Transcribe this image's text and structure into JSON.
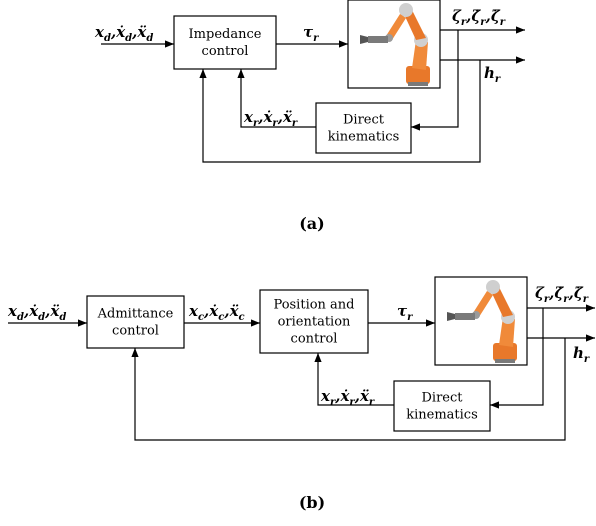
{
  "panels": [
    {
      "caption": "(a)",
      "blocks": [
        {
          "lines": [
            "Impedance",
            "control"
          ]
        },
        {
          "lines": [
            "Direct",
            "kinematics"
          ]
        }
      ],
      "signals": [
        {
          "separator": ",",
          "terms": [
            {
              "symbol": "x",
              "sub": "d"
            },
            {
              "symbol": "ẋ",
              "sub": "d"
            },
            {
              "symbol": "ẍ",
              "sub": "d"
            }
          ]
        },
        {
          "separator": ",",
          "terms": [
            {
              "symbol": "τ",
              "sub": "r"
            }
          ]
        },
        {
          "separator": ",",
          "terms": [
            {
              "symbol": "ζ",
              "sub": "r"
            },
            {
              "symbol": "ζ̇",
              "sub": "r"
            },
            {
              "symbol": "ζ̈",
              "sub": "r"
            }
          ]
        },
        {
          "separator": ",",
          "terms": [
            {
              "symbol": "h",
              "sub": "r"
            }
          ]
        },
        {
          "separator": ",",
          "terms": [
            {
              "symbol": "x",
              "sub": "r"
            },
            {
              "symbol": "ẋ",
              "sub": "r"
            },
            {
              "symbol": "ẍ",
              "sub": "r"
            }
          ]
        }
      ]
    },
    {
      "caption": "(b)",
      "blocks": [
        {
          "lines": [
            "Admittance",
            "control"
          ]
        },
        {
          "lines": [
            "Position and",
            "orientation",
            "control"
          ]
        },
        {
          "lines": [
            "Direct",
            "kinematics"
          ]
        }
      ],
      "signals": [
        {
          "separator": ",",
          "terms": [
            {
              "symbol": "x",
              "sub": "d"
            },
            {
              "symbol": "ẋ",
              "sub": "d"
            },
            {
              "symbol": "ẍ",
              "sub": "d"
            }
          ]
        },
        {
          "separator": ",",
          "terms": [
            {
              "symbol": "x",
              "sub": "c"
            },
            {
              "symbol": "ẋ",
              "sub": "c"
            },
            {
              "symbol": "ẍ",
              "sub": "c"
            }
          ]
        },
        {
          "separator": ",",
          "terms": [
            {
              "symbol": "τ",
              "sub": "r"
            }
          ]
        },
        {
          "separator": ",",
          "terms": [
            {
              "symbol": "ζ",
              "sub": "r"
            },
            {
              "symbol": "ζ̇",
              "sub": "r"
            },
            {
              "symbol": "ζ̈",
              "sub": "r"
            }
          ]
        },
        {
          "separator": ",",
          "terms": [
            {
              "symbol": "h",
              "sub": "r"
            }
          ]
        },
        {
          "separator": ",",
          "terms": [
            {
              "symbol": "x",
              "sub": "r"
            },
            {
              "symbol": "ẋ",
              "sub": "r"
            },
            {
              "symbol": "ẍ",
              "sub": "r"
            }
          ]
        }
      ]
    }
  ]
}
